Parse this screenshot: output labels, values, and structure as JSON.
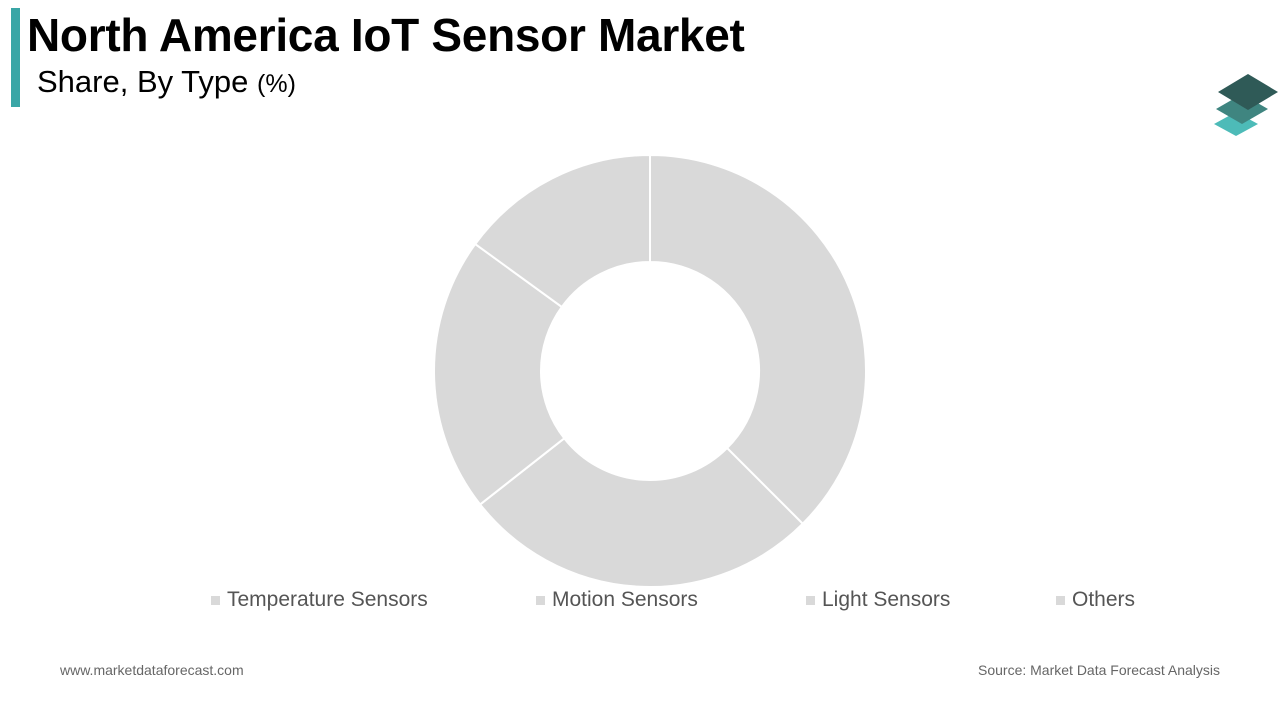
{
  "header": {
    "title": "North America IoT Sensor Market",
    "subtitle": "Share, By Type",
    "subtitle_unit": "(%)"
  },
  "colors": {
    "accent": "#3aa6a6",
    "slice_fill": "#d9d9d9",
    "slice_stroke": "#ffffff",
    "logo_top": "#2f5a57",
    "logo_mid": "#3f8580",
    "logo_bottom": "#4dbbb8"
  },
  "logo": {
    "icon": "stacked-layers-icon"
  },
  "chart_data": {
    "type": "pie",
    "donut": true,
    "legend": "bottom",
    "categories": [
      "Temperature Sensors",
      "Motion Sensors",
      "Light Sensors",
      "Others"
    ],
    "values": [
      37.5,
      26.9,
      20.6,
      15.0
    ]
  },
  "footer": {
    "website": "www.marketdataforecast.com",
    "source": "Source: Market Data Forecast Analysis"
  }
}
